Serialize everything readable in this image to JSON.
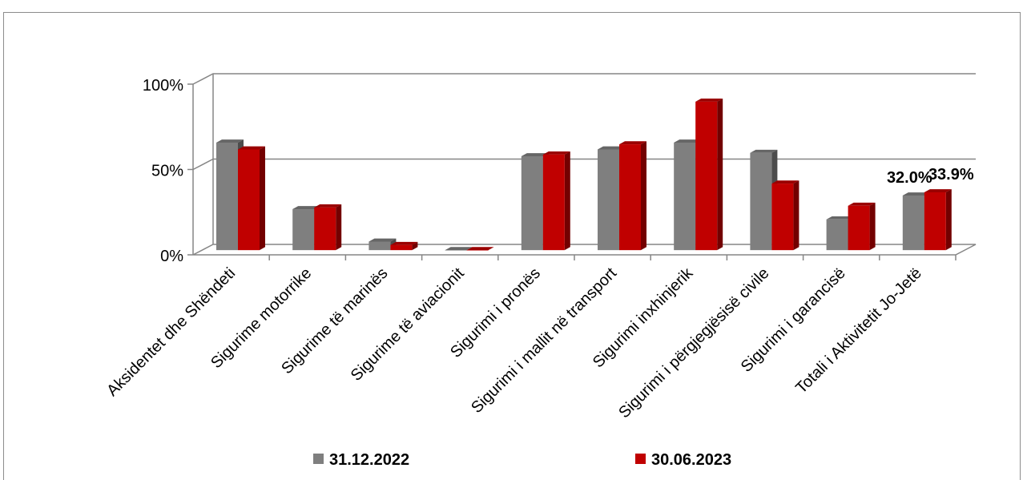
{
  "chart_data": {
    "type": "bar",
    "title": "",
    "xlabel": "",
    "ylabel": "",
    "ylim": [
      0,
      100
    ],
    "y_ticks": [
      "0%",
      "50%",
      "100%"
    ],
    "grid": true,
    "legend_position": "bottom",
    "categories": [
      "Aksidentet dhe Shëndeti",
      "Sigurime motorrike",
      "Sigurime të marinës",
      "Sigurime të aviacionit",
      "Sigurimi i pronës",
      "Sigurimi i mallit në transport",
      "Sigurimi inxhinjerik",
      "Sigurimi i përgjegjësisë civile",
      "Sigurimi i garancisë",
      "Totali i Aktivitetit Jo-Jetë"
    ],
    "series": [
      {
        "name": "31.12.2022",
        "color": "#7f7f7f",
        "values": [
          63,
          24,
          5,
          0,
          55,
          59,
          63,
          57,
          18,
          32.0
        ]
      },
      {
        "name": "30.06.2023",
        "color": "#c00000",
        "values": [
          59,
          25,
          3,
          0,
          56,
          62,
          87,
          39,
          26,
          33.9
        ]
      }
    ],
    "data_labels": [
      {
        "series": 0,
        "index": 9,
        "text": "32.0%"
      },
      {
        "series": 1,
        "index": 9,
        "text": "33.9%"
      }
    ]
  }
}
